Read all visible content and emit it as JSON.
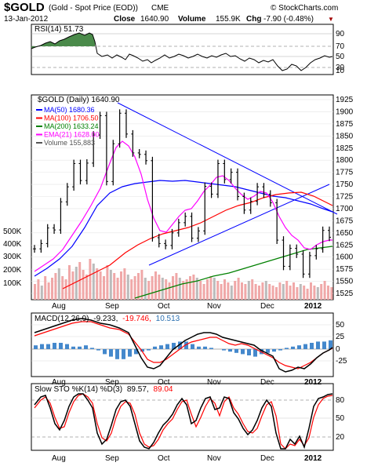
{
  "header": {
    "symbol": "$GOLD",
    "name": "(Gold - Spot Price (EOD))",
    "exchange": "CME",
    "brand": "© StockCharts.com",
    "date": "13-Jan-2012",
    "close_label": "Close",
    "close_value": "1640.90",
    "volume_label": "Volume",
    "volume_value": "155.9K",
    "chg_label": "Chg",
    "chg_value": "-7.90 (-0.48%)",
    "chg_arrow": "▼"
  },
  "colors": {
    "price": "#000000",
    "ma50": "#0000ff",
    "ma100": "#ff0000",
    "ma200": "#008000",
    "ema21": "#ff00ff",
    "trend": "#0000ff",
    "volume_up": "#f0a0a0",
    "macd": "#000000",
    "signal": "#ff0000",
    "hist": "#4488cc",
    "rsi_fill": "#4a8a4a"
  },
  "rsi_panel": {
    "label": "RSI(14) 51.73",
    "ticks": [
      "90",
      "70",
      "50",
      "30",
      "10"
    ]
  },
  "price_panel": {
    "title": "$GOLD (Daily) 1640.90",
    "legend": [
      {
        "text": "MA(50) 1680.36",
        "color": "#0000ff"
      },
      {
        "text": "MA(100) 1706.50",
        "color": "#ff0000"
      },
      {
        "text": "MA(200) 1633.24",
        "color": "#008000"
      },
      {
        "text": "EMA(21) 1628.00",
        "color": "#ff00ff"
      },
      {
        "text": "Volume 155,883",
        "color": "#555555"
      }
    ],
    "price_ticks": [
      "1925",
      "1900",
      "1875",
      "1850",
      "1825",
      "1800",
      "1775",
      "1750",
      "1725",
      "1700",
      "1675",
      "1650",
      "1625",
      "1600",
      "1575",
      "1550",
      "1525"
    ],
    "volume_ticks": [
      "500K",
      "400K",
      "300K",
      "200K",
      "100K"
    ]
  },
  "macd_panel": {
    "label": "MACD(12,26,9) -9.233, -19.746, 10.513",
    "label_parts": [
      "MACD(12,26,9)",
      "-9.233,",
      "-19.746,",
      "10.513"
    ],
    "ticks": [
      "50",
      "25",
      "0",
      "-25"
    ]
  },
  "sto_panel": {
    "label": "Slow STO %K(14) %D(3) 89.57, 89.04",
    "label_parts": [
      "Slow STO %K(14) %D(3)",
      "89.57,",
      "89.04"
    ],
    "ticks": [
      "80",
      "50",
      "20"
    ]
  },
  "x_axis": {
    "labels": [
      "Aug",
      "Sep",
      "Oct",
      "Nov",
      "Dec",
      "2012"
    ]
  },
  "chart_data": {
    "type": "line",
    "title": "$GOLD (Daily)",
    "price_range": [
      1520,
      1930
    ],
    "price_series": [
      {
        "date": "Jul-26",
        "close": 1617
      },
      {
        "date": "Jul-29",
        "close": 1628
      },
      {
        "date": "Aug-03",
        "close": 1660
      },
      {
        "date": "Aug-05",
        "close": 1656
      },
      {
        "date": "Aug-08",
        "close": 1714
      },
      {
        "date": "Aug-09",
        "close": 1745
      },
      {
        "date": "Aug-10",
        "close": 1793
      },
      {
        "date": "Aug-11",
        "close": 1758
      },
      {
        "date": "Aug-17",
        "close": 1794
      },
      {
        "date": "Aug-19",
        "close": 1852
      },
      {
        "date": "Aug-22",
        "close": 1892
      },
      {
        "date": "Aug-24",
        "close": 1756
      },
      {
        "date": "Aug-30",
        "close": 1834
      },
      {
        "date": "Sep-05",
        "close": 1897
      },
      {
        "date": "Sep-09",
        "close": 1854
      },
      {
        "date": "Sep-12",
        "close": 1815
      },
      {
        "date": "Sep-16",
        "close": 1812
      },
      {
        "date": "Sep-21",
        "close": 1799
      },
      {
        "date": "Sep-23",
        "close": 1640
      },
      {
        "date": "Sep-26",
        "close": 1628
      },
      {
        "date": "Sep-30",
        "close": 1624
      },
      {
        "date": "Oct-04",
        "close": 1650
      },
      {
        "date": "Oct-10",
        "close": 1671
      },
      {
        "date": "Oct-14",
        "close": 1684
      },
      {
        "date": "Oct-19",
        "close": 1639
      },
      {
        "date": "Oct-24",
        "close": 1654
      },
      {
        "date": "Oct-28",
        "close": 1746
      },
      {
        "date": "Nov-01",
        "close": 1730
      },
      {
        "date": "Nov-08",
        "close": 1793
      },
      {
        "date": "Nov-10",
        "close": 1760
      },
      {
        "date": "Nov-15",
        "close": 1775
      },
      {
        "date": "Nov-18",
        "close": 1725
      },
      {
        "date": "Nov-23",
        "close": 1697
      },
      {
        "date": "Nov-28",
        "close": 1715
      },
      {
        "date": "Dec-01",
        "close": 1745
      },
      {
        "date": "Dec-06",
        "close": 1730
      },
      {
        "date": "Dec-09",
        "close": 1712
      },
      {
        "date": "Dec-13",
        "close": 1635
      },
      {
        "date": "Dec-15",
        "close": 1581
      },
      {
        "date": "Dec-20",
        "close": 1618
      },
      {
        "date": "Dec-23",
        "close": 1606
      },
      {
        "date": "Dec-29",
        "close": 1565
      },
      {
        "date": "Jan-03",
        "close": 1603
      },
      {
        "date": "Jan-06",
        "close": 1617
      },
      {
        "date": "Jan-10",
        "close": 1655
      },
      {
        "date": "Jan-13",
        "close": 1640.9
      }
    ],
    "moving_averages": {
      "MA(50)": 1680.36,
      "MA(100)": 1706.5,
      "MA(200)": 1633.24,
      "EMA(21)": 1628.0
    },
    "volume_last": 155883,
    "rsi": {
      "period": 14,
      "last": 51.73,
      "ylim": [
        10,
        90
      ]
    },
    "macd": {
      "params": [
        12,
        26,
        9
      ],
      "macd": -9.233,
      "signal": -19.746,
      "histogram": 10.513,
      "ylim": [
        -35,
        60
      ]
    },
    "slow_sto": {
      "k_period": 14,
      "d_period": 3,
      "k": 89.57,
      "d": 89.04,
      "ylim": [
        0,
        100
      ]
    }
  }
}
